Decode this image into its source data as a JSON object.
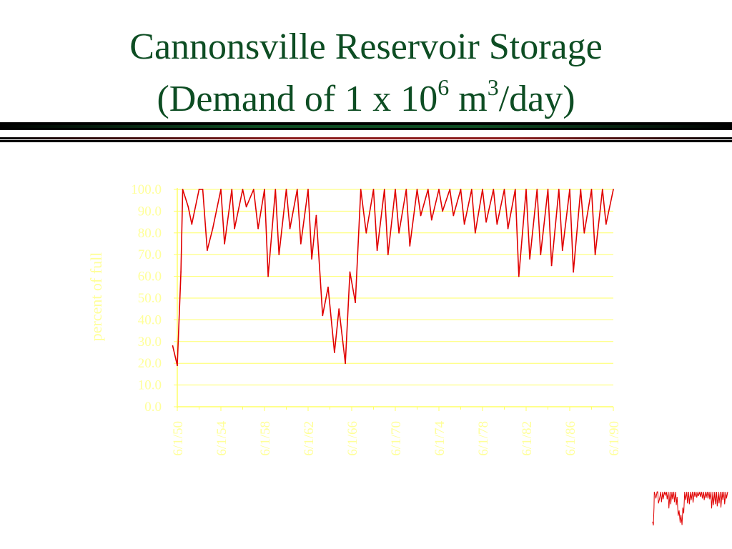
{
  "slide": {
    "title_line1": "Cannonsville Reservoir Storage",
    "title_line2_pre": "(Demand of 1 x 10",
    "title_sup1": "6",
    "title_mid": " m",
    "title_sup2": "3",
    "title_post": "/day)"
  },
  "colors": {
    "title": "#0d4d23",
    "rule_dark": "#000000",
    "rule_green": "#0d4d23",
    "rule_red": "#8b1a1a",
    "axis_text": "#ffff99",
    "gridline": "#ffff66",
    "series": "#e00000"
  },
  "chart_data": {
    "type": "line",
    "title": "",
    "xlabel": "",
    "ylabel": "percent of full",
    "ylim": [
      0,
      100
    ],
    "y_ticks": [
      "0.0",
      "10.0",
      "20.0",
      "30.0",
      "40.0",
      "50.0",
      "60.0",
      "70.0",
      "80.0",
      "90.0",
      "100.0"
    ],
    "x_ticks": [
      "6/1/50",
      "6/1/54",
      "6/1/58",
      "6/1/62",
      "6/1/66",
      "6/1/70",
      "6/1/74",
      "6/1/78",
      "6/1/82",
      "6/1/86",
      "6/1/90"
    ],
    "xlim": [
      "6/1/50",
      "6/1/90"
    ],
    "grid": true,
    "legend": "none",
    "series": [
      {
        "x": [
          "1/1/50",
          "6/1/50",
          "10/1/50",
          "12/1/50",
          "6/1/51",
          "10/1/51",
          "6/1/52",
          "10/1/52",
          "3/1/53",
          "9/1/53",
          "6/1/54",
          "10/1/54",
          "6/1/55",
          "9/1/55",
          "6/1/56",
          "10/1/56",
          "6/1/57",
          "11/1/57",
          "6/1/58",
          "10/1/58",
          "6/1/59",
          "10/1/59",
          "6/1/60",
          "10/1/60",
          "6/1/61",
          "10/1/61",
          "6/1/62",
          "10/1/62",
          "3/1/63",
          "10/1/63",
          "4/1/64",
          "11/1/64",
          "4/1/65",
          "11/1/65",
          "4/1/66",
          "10/1/66",
          "4/1/67",
          "10/1/67",
          "6/1/68",
          "10/1/68",
          "6/1/69",
          "10/1/69",
          "6/1/70",
          "10/1/70",
          "6/1/71",
          "10/1/71",
          "6/1/72",
          "10/1/72",
          "6/1/73",
          "10/1/73",
          "6/1/74",
          "10/1/74",
          "6/1/75",
          "10/1/75",
          "6/1/76",
          "10/1/76",
          "6/1/77",
          "10/1/77",
          "6/1/78",
          "10/1/78",
          "6/1/79",
          "10/1/79",
          "6/1/80",
          "10/1/80",
          "6/1/81",
          "10/1/81",
          "6/1/82",
          "10/1/82",
          "6/1/83",
          "10/1/83",
          "6/1/84",
          "10/1/84",
          "6/1/85",
          "10/1/85",
          "6/1/86",
          "10/1/86",
          "6/1/87",
          "10/1/87",
          "6/1/88",
          "10/1/88",
          "6/1/89",
          "10/1/89",
          "6/1/90"
        ],
        "y": [
          28,
          19,
          62,
          100,
          92,
          84,
          100,
          100,
          72,
          82,
          100,
          75,
          100,
          82,
          100,
          92,
          100,
          82,
          100,
          60,
          100,
          70,
          100,
          82,
          100,
          75,
          100,
          68,
          88,
          42,
          55,
          25,
          45,
          20,
          62,
          48,
          100,
          80,
          100,
          72,
          100,
          70,
          100,
          80,
          100,
          74,
          100,
          88,
          100,
          86,
          100,
          90,
          100,
          88,
          100,
          84,
          100,
          80,
          100,
          85,
          100,
          84,
          100,
          82,
          100,
          60,
          100,
          68,
          100,
          70,
          100,
          65,
          100,
          72,
          100,
          62,
          100,
          80,
          100,
          70,
          100,
          84,
          100
        ]
      }
    ]
  }
}
